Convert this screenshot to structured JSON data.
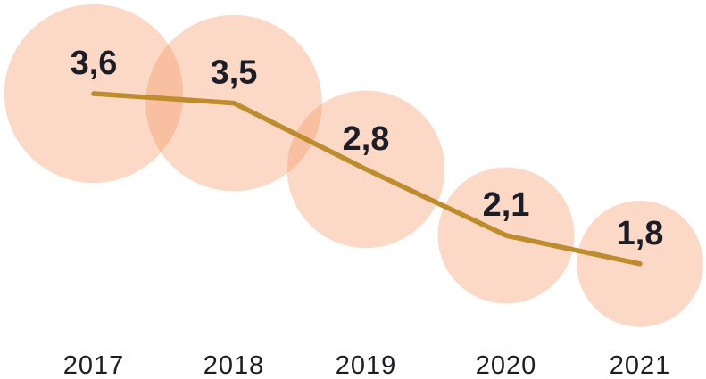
{
  "chart_data": {
    "type": "line",
    "subtype": "bubble-line",
    "title": "",
    "xlabel": "",
    "ylabel": "",
    "categories": [
      "2017",
      "2018",
      "2019",
      "2020",
      "2021"
    ],
    "values": [
      3.6,
      3.5,
      2.8,
      2.1,
      1.8
    ],
    "value_labels": [
      "3,6",
      "3,5",
      "2,8",
      "2,1",
      "1,8"
    ],
    "decimal_style": "comma",
    "legend": "none",
    "grid": false,
    "axes_visible": false,
    "ylim": [
      0,
      4
    ],
    "bubble_sizing": "area-proportional-to-value",
    "colors": {
      "background": "#FFFFFF",
      "bubble_fill": "#F4925C",
      "bubble_opacity": 0.35,
      "line": "#BE8B2D",
      "text": "#1D1D27"
    }
  }
}
